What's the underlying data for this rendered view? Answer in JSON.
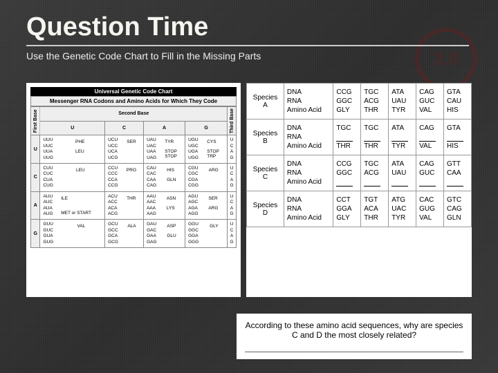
{
  "header": {
    "title": "Question Time",
    "subtitle": "Use the Genetic Code Chart to Fill in the Missing Parts"
  },
  "logo": {
    "main": "2.0",
    "side": "REGENTS REVIEW"
  },
  "chart": {
    "title1": "Universal Genetic Code Chart",
    "title2": "Messenger RNA Codons and Amino Acids for Which They Code",
    "second_base": "Second Base",
    "first_base": "First Base",
    "third_base": "Third Base",
    "bases": [
      "U",
      "C",
      "A",
      "G"
    ],
    "cells": [
      [
        {
          "codons": [
            "UUU",
            "UUC",
            "UUA",
            "UUG"
          ],
          "aa": [
            "PHE",
            "",
            "LEU",
            ""
          ]
        },
        {
          "codons": [
            "UCU",
            "UCC",
            "UCA",
            "UCG"
          ],
          "aa": [
            "SER",
            "",
            "",
            ""
          ]
        },
        {
          "codons": [
            "UAU",
            "UAC",
            "UAA",
            "UAG"
          ],
          "aa": [
            "TYR",
            "",
            "STOP",
            "STOP"
          ]
        },
        {
          "codons": [
            "UGU",
            "UGC",
            "UGA",
            "UGG"
          ],
          "aa": [
            "CYS",
            "",
            "STOP",
            "TRP"
          ]
        }
      ],
      [
        {
          "codons": [
            "CUU",
            "CUC",
            "CUA",
            "CUG"
          ],
          "aa": [
            "LEU",
            "",
            "",
            ""
          ]
        },
        {
          "codons": [
            "CCU",
            "CCC",
            "CCA",
            "CCG"
          ],
          "aa": [
            "PRO",
            "",
            "",
            ""
          ]
        },
        {
          "codons": [
            "CAU",
            "CAC",
            "CAA",
            "CAG"
          ],
          "aa": [
            "HIS",
            "",
            "GLN",
            ""
          ]
        },
        {
          "codons": [
            "CGU",
            "CGC",
            "CGA",
            "CGG"
          ],
          "aa": [
            "ARG",
            "",
            "",
            ""
          ]
        }
      ],
      [
        {
          "codons": [
            "AUU",
            "AUC",
            "AUA",
            "AUG"
          ],
          "aa": [
            "ILE",
            "",
            "",
            "MET or START"
          ]
        },
        {
          "codons": [
            "ACU",
            "ACC",
            "ACA",
            "ACG"
          ],
          "aa": [
            "THR",
            "",
            "",
            ""
          ]
        },
        {
          "codons": [
            "AAU",
            "AAC",
            "AAA",
            "AAG"
          ],
          "aa": [
            "ASN",
            "",
            "LYS",
            ""
          ]
        },
        {
          "codons": [
            "AGU",
            "AGC",
            "AGA",
            "AGG"
          ],
          "aa": [
            "SER",
            "",
            "ARG",
            ""
          ]
        }
      ],
      [
        {
          "codons": [
            "GUU",
            "GUC",
            "GUA",
            "GUG"
          ],
          "aa": [
            "VAL",
            "",
            "",
            ""
          ]
        },
        {
          "codons": [
            "GCU",
            "GCC",
            "GCA",
            "GCG"
          ],
          "aa": [
            "ALA",
            "",
            "",
            ""
          ]
        },
        {
          "codons": [
            "GAU",
            "GAC",
            "GAA",
            "GAG"
          ],
          "aa": [
            "ASP",
            "",
            "GLU",
            ""
          ]
        },
        {
          "codons": [
            "GGU",
            "GGC",
            "GGA",
            "GGG"
          ],
          "aa": [
            "GLY",
            "",
            "",
            ""
          ]
        }
      ]
    ]
  },
  "species_table": {
    "row_labels": [
      "DNA",
      "RNA",
      "Amino Acid"
    ],
    "rows": [
      {
        "name": "Species A",
        "cols": [
          [
            "CCG",
            "GGC",
            "GLY"
          ],
          [
            "TGC",
            "ACG",
            "THR"
          ],
          [
            "ATA",
            "UAU",
            "TYR"
          ],
          [
            "CAG",
            "GUC",
            "VAL"
          ],
          [
            "GTA",
            "CAU",
            "HIS"
          ]
        ]
      },
      {
        "name": "Species B",
        "cols": [
          [
            "TGC",
            "___",
            "THR"
          ],
          [
            "TGC",
            "___",
            "THR"
          ],
          [
            "ATA",
            "___",
            "TYR"
          ],
          [
            "CAG",
            "___",
            "VAL"
          ],
          [
            "GTA",
            "___",
            "HIS"
          ]
        ]
      },
      {
        "name": "Species C",
        "cols": [
          [
            "CCG",
            "GGC",
            "___"
          ],
          [
            "TGC",
            "ACG",
            "___"
          ],
          [
            "ATA",
            "UAU",
            "___"
          ],
          [
            "CAG",
            "GUC",
            "___"
          ],
          [
            "GTT",
            "CAA",
            "___"
          ]
        ]
      },
      {
        "name": "Species D",
        "cols": [
          [
            "CCT",
            "GGA",
            "GLY"
          ],
          [
            "TGT",
            "ACA",
            "THR"
          ],
          [
            "ATG",
            "UAC",
            "TYR"
          ],
          [
            "CAC",
            "GUG",
            "VAL"
          ],
          [
            "GTC",
            "CAG",
            "GLN"
          ]
        ]
      }
    ]
  },
  "question": {
    "text": "According to these amino acid sequences, why are species C and D the most closely related?"
  },
  "colors": {
    "bg1": "#3a3a3a",
    "bg2": "#2d2d2d",
    "panel": "#ffffff",
    "border": "#999999",
    "logo": "#7a1a1a"
  }
}
